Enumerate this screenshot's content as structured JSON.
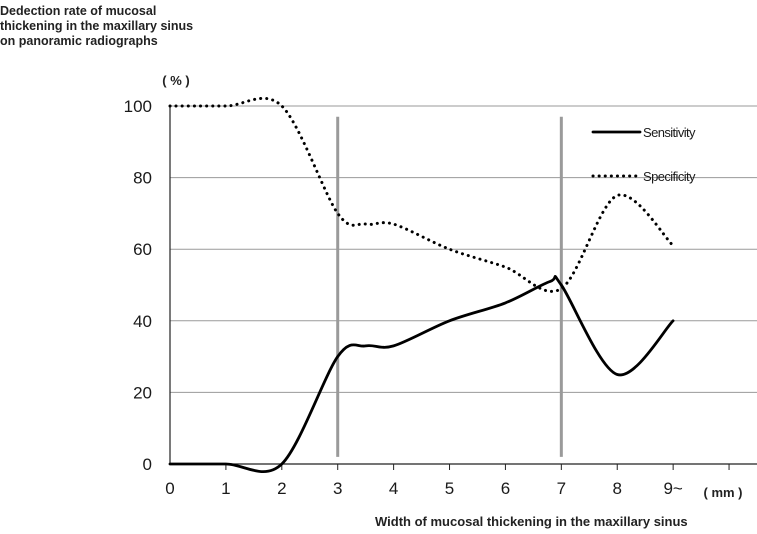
{
  "chart_data": {
    "type": "line",
    "title_lines": [
      "Dedection rate of mucosal",
      "thickening in the maxillary sinus",
      "on panoramic radiographs"
    ],
    "y_unit": "( % )",
    "x_unit": "( mm )",
    "xlabel": "Width of mucosal thickening in the maxillary sinus",
    "x_ticks": [
      "0",
      "1",
      "2",
      "3",
      "4",
      "5",
      "6",
      "7",
      "8",
      "9~"
    ],
    "y_ticks": [
      "0",
      "20",
      "40",
      "60",
      "80",
      "100"
    ],
    "xlim": [
      0,
      10.5
    ],
    "ylim": [
      0,
      100
    ],
    "grid": "horizontal",
    "legend_position": "top-right",
    "reference_lines_x": [
      3,
      7
    ],
    "series": [
      {
        "name": "Sensitivity",
        "style": "solid",
        "color": "#000000",
        "x": [
          0,
          1,
          2,
          3,
          3.5,
          4,
          5,
          6,
          6.8,
          7,
          8,
          9
        ],
        "y": [
          0,
          0,
          0,
          30,
          33,
          33,
          40,
          45,
          51,
          50,
          25,
          40
        ]
      },
      {
        "name": "Specificity",
        "style": "dotted",
        "color": "#000000",
        "x": [
          0,
          1,
          2,
          3,
          3.5,
          4,
          5,
          6,
          7,
          8,
          9
        ],
        "y": [
          100,
          100,
          100,
          70,
          67,
          67,
          60,
          55,
          49,
          75,
          61
        ]
      }
    ]
  }
}
